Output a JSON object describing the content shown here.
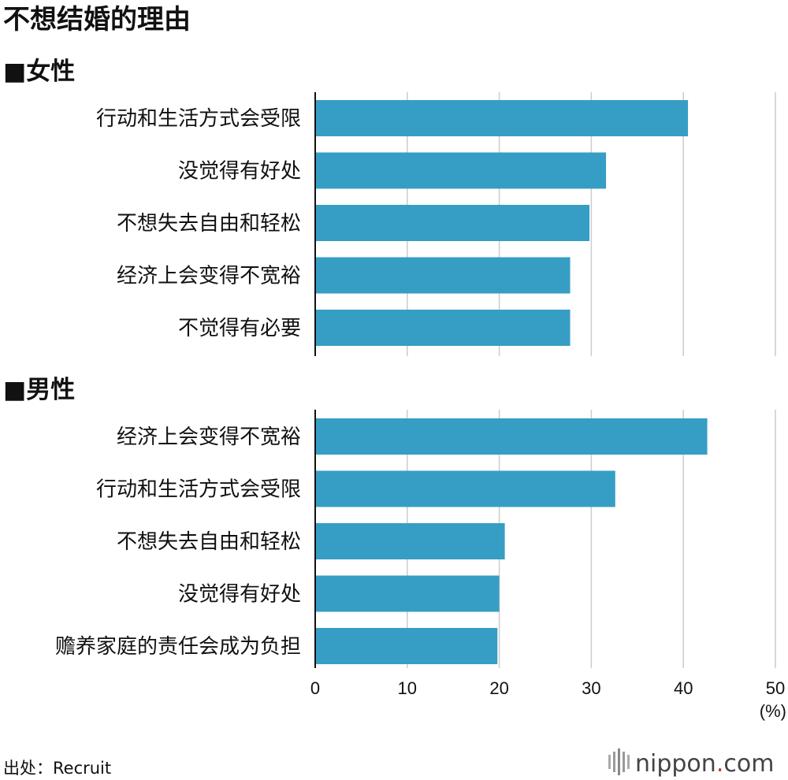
{
  "chart_data": {
    "type": "bar",
    "orientation": "horizontal",
    "title": "不想结婚的理由",
    "unit": "(%)",
    "xlim": [
      0,
      50
    ],
    "ticks": [
      0,
      10,
      20,
      30,
      40,
      50
    ],
    "grid": true,
    "bar_color": "#369ec4",
    "panels": [
      {
        "title": "■女性",
        "categories": [
          "行动和生活方式会受限",
          "没觉得有好处",
          "不想失去自由和轻松",
          "经济上会变得不宽裕",
          "不觉得有必要"
        ],
        "values": [
          40.5,
          31.6,
          29.8,
          27.7,
          27.7
        ]
      },
      {
        "title": "■男性",
        "categories": [
          "经济上会变得不宽裕",
          "行动和生活方式会受限",
          "不想失去自由和轻松",
          "没觉得有好处",
          "赡养家庭的责任会成为负担"
        ],
        "values": [
          42.6,
          32.6,
          20.6,
          20.0,
          19.8
        ]
      }
    ]
  },
  "source": "出处：Recruit",
  "logo": {
    "main": "nippon",
    "dot": ".",
    "suffix": "com",
    "dot_color": "#c0392b"
  }
}
